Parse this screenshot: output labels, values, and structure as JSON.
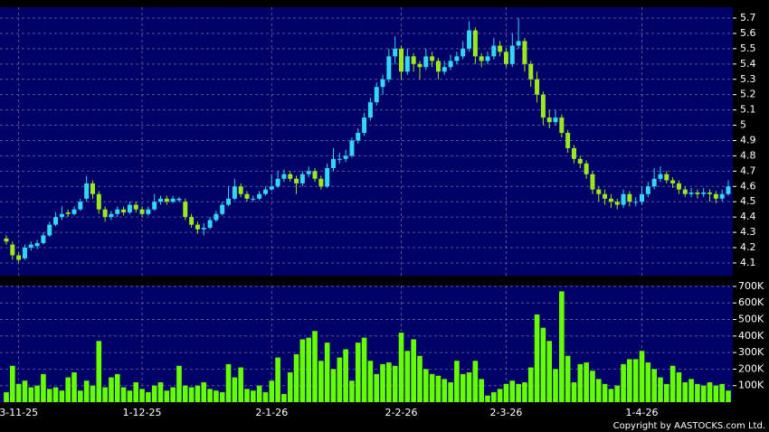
{
  "chart_data": {
    "type": "candlestick",
    "up_color": "#33d6f5",
    "down_color": "#9be81e",
    "volume_color": "#66ff00",
    "grid": true,
    "ylim": [
      4.017,
      5.771
    ],
    "yticks": [
      4.1,
      4.2,
      4.3,
      4.4,
      4.5,
      4.6,
      4.7,
      4.8,
      4.9,
      5,
      5.1,
      5.2,
      5.3,
      5.4,
      5.5,
      5.6,
      5.7
    ],
    "volume_ylim": [
      0,
      705000
    ],
    "volume_yticks": [
      {
        "value": 100000,
        "label": "100K"
      },
      {
        "value": 200000,
        "label": "200K"
      },
      {
        "value": 300000,
        "label": "300K"
      },
      {
        "value": 400000,
        "label": "400K"
      },
      {
        "value": 500000,
        "label": "500K"
      },
      {
        "value": 600000,
        "label": "600K"
      },
      {
        "value": 700000,
        "label": "700K"
      }
    ],
    "xlim": [
      0,
      117
    ],
    "xticks": [
      {
        "value": 2,
        "label": "3-11-25"
      },
      {
        "value": 22,
        "label": "1-12-25"
      },
      {
        "value": 43,
        "label": "2-1-26"
      },
      {
        "value": 64,
        "label": "2-2-26"
      },
      {
        "value": 81,
        "label": "2-3-26"
      },
      {
        "value": 103,
        "label": "1-4-26"
      }
    ],
    "candles": [
      [
        4.26,
        4.28,
        4.22,
        4.24
      ],
      [
        4.22,
        4.24,
        4.12,
        4.15
      ],
      [
        4.15,
        4.17,
        4.1,
        4.12
      ],
      [
        4.13,
        4.22,
        4.12,
        4.2
      ],
      [
        4.2,
        4.24,
        4.18,
        4.22
      ],
      [
        4.21,
        4.25,
        4.19,
        4.23
      ],
      [
        4.23,
        4.3,
        4.22,
        4.28
      ],
      [
        4.28,
        4.37,
        4.27,
        4.35
      ],
      [
        4.35,
        4.43,
        4.34,
        4.4
      ],
      [
        4.4,
        4.47,
        4.38,
        4.42
      ],
      [
        4.43,
        4.45,
        4.4,
        4.42
      ],
      [
        4.42,
        4.47,
        4.41,
        4.45
      ],
      [
        4.45,
        4.52,
        4.44,
        4.5
      ],
      [
        4.52,
        4.67,
        4.5,
        4.62
      ],
      [
        4.62,
        4.64,
        4.52,
        4.55
      ],
      [
        4.55,
        4.57,
        4.42,
        4.45
      ],
      [
        4.45,
        4.47,
        4.37,
        4.4
      ],
      [
        4.4,
        4.44,
        4.38,
        4.42
      ],
      [
        4.42,
        4.47,
        4.4,
        4.45
      ],
      [
        4.45,
        4.47,
        4.41,
        4.43
      ],
      [
        4.43,
        4.5,
        4.42,
        4.48
      ],
      [
        4.48,
        4.5,
        4.43,
        4.45
      ],
      [
        4.45,
        4.47,
        4.4,
        4.42
      ],
      [
        4.42,
        4.47,
        4.41,
        4.45
      ],
      [
        4.45,
        4.55,
        4.44,
        4.5
      ],
      [
        4.5,
        4.54,
        4.48,
        4.52
      ],
      [
        4.52,
        4.54,
        4.48,
        4.5
      ],
      [
        4.5,
        4.54,
        4.49,
        4.52
      ],
      [
        4.51,
        4.53,
        4.5,
        4.52
      ],
      [
        4.5,
        4.52,
        4.38,
        4.4
      ],
      [
        4.4,
        4.42,
        4.33,
        4.35
      ],
      [
        4.35,
        4.37,
        4.29,
        4.32
      ],
      [
        4.32,
        4.36,
        4.28,
        4.33
      ],
      [
        4.33,
        4.4,
        4.32,
        4.38
      ],
      [
        4.38,
        4.44,
        4.37,
        4.42
      ],
      [
        4.42,
        4.5,
        4.41,
        4.48
      ],
      [
        4.48,
        4.6,
        4.47,
        4.52
      ],
      [
        4.52,
        4.65,
        4.51,
        4.6
      ],
      [
        4.6,
        4.62,
        4.53,
        4.55
      ],
      [
        4.55,
        4.57,
        4.5,
        4.52
      ],
      [
        4.52,
        4.54,
        4.5,
        4.52
      ],
      [
        4.52,
        4.57,
        4.51,
        4.55
      ],
      [
        4.55,
        4.6,
        4.54,
        4.58
      ],
      [
        4.58,
        4.68,
        4.57,
        4.6
      ],
      [
        4.6,
        4.7,
        4.59,
        4.65
      ],
      [
        4.65,
        4.71,
        4.63,
        4.68
      ],
      [
        4.68,
        4.7,
        4.63,
        4.65
      ],
      [
        4.65,
        4.67,
        4.55,
        4.62
      ],
      [
        4.62,
        4.7,
        4.6,
        4.68
      ],
      [
        4.68,
        4.73,
        4.66,
        4.7
      ],
      [
        4.7,
        4.72,
        4.63,
        4.65
      ],
      [
        4.65,
        4.67,
        4.58,
        4.6
      ],
      [
        4.6,
        4.75,
        4.59,
        4.72
      ],
      [
        4.72,
        4.85,
        4.7,
        4.78
      ],
      [
        4.78,
        4.82,
        4.75,
        4.78
      ],
      [
        4.78,
        4.84,
        4.76,
        4.8
      ],
      [
        4.8,
        4.92,
        4.79,
        4.9
      ],
      [
        4.9,
        4.98,
        4.88,
        4.95
      ],
      [
        4.95,
        5.08,
        4.93,
        5.05
      ],
      [
        5.05,
        5.18,
        5.03,
        5.15
      ],
      [
        5.15,
        5.28,
        5.13,
        5.25
      ],
      [
        5.25,
        5.33,
        5.2,
        5.3
      ],
      [
        5.3,
        5.5,
        5.28,
        5.45
      ],
      [
        5.45,
        5.58,
        5.4,
        5.5
      ],
      [
        5.5,
        5.52,
        5.3,
        5.35
      ],
      [
        5.35,
        5.5,
        5.33,
        5.45
      ],
      [
        5.45,
        5.47,
        5.35,
        5.4
      ],
      [
        5.4,
        5.42,
        5.3,
        5.38
      ],
      [
        5.38,
        5.5,
        5.36,
        5.45
      ],
      [
        5.45,
        5.48,
        5.38,
        5.42
      ],
      [
        5.42,
        5.44,
        5.3,
        5.35
      ],
      [
        5.35,
        5.42,
        5.33,
        5.38
      ],
      [
        5.38,
        5.46,
        5.36,
        5.42
      ],
      [
        5.42,
        5.48,
        5.4,
        5.45
      ],
      [
        5.45,
        5.55,
        5.43,
        5.5
      ],
      [
        5.5,
        5.68,
        5.48,
        5.62
      ],
      [
        5.62,
        5.64,
        5.4,
        5.45
      ],
      [
        5.45,
        5.47,
        5.38,
        5.42
      ],
      [
        5.42,
        5.48,
        5.4,
        5.45
      ],
      [
        5.45,
        5.57,
        5.43,
        5.52
      ],
      [
        5.52,
        5.55,
        5.45,
        5.48
      ],
      [
        5.48,
        5.5,
        5.38,
        5.4
      ],
      [
        5.4,
        5.6,
        5.38,
        5.52
      ],
      [
        5.52,
        5.7,
        5.5,
        5.55
      ],
      [
        5.55,
        5.57,
        5.35,
        5.4
      ],
      [
        5.4,
        5.42,
        5.25,
        5.3
      ],
      [
        5.3,
        5.35,
        5.15,
        5.2
      ],
      [
        5.2,
        5.22,
        5.0,
        5.05
      ],
      [
        5.05,
        5.1,
        4.98,
        5.02
      ],
      [
        5.02,
        5.1,
        5.0,
        5.05
      ],
      [
        5.05,
        5.07,
        4.92,
        4.95
      ],
      [
        4.95,
        4.97,
        4.82,
        4.85
      ],
      [
        4.85,
        4.87,
        4.75,
        4.78
      ],
      [
        4.78,
        4.8,
        4.72,
        4.75
      ],
      [
        4.75,
        4.77,
        4.65,
        4.68
      ],
      [
        4.68,
        4.7,
        4.55,
        4.58
      ],
      [
        4.58,
        4.6,
        4.5,
        4.55
      ],
      [
        4.55,
        4.58,
        4.48,
        4.52
      ],
      [
        4.52,
        4.55,
        4.46,
        4.5
      ],
      [
        4.5,
        4.52,
        4.45,
        4.48
      ],
      [
        4.48,
        4.58,
        4.46,
        4.55
      ],
      [
        4.55,
        4.57,
        4.47,
        4.5
      ],
      [
        4.5,
        4.53,
        4.47,
        4.5
      ],
      [
        4.5,
        4.6,
        4.48,
        4.55
      ],
      [
        4.55,
        4.63,
        4.53,
        4.6
      ],
      [
        4.6,
        4.72,
        4.58,
        4.65
      ],
      [
        4.65,
        4.73,
        4.63,
        4.68
      ],
      [
        4.68,
        4.7,
        4.62,
        4.64
      ],
      [
        4.64,
        4.66,
        4.59,
        4.62
      ],
      [
        4.62,
        4.64,
        4.55,
        4.58
      ],
      [
        4.58,
        4.6,
        4.53,
        4.55
      ],
      [
        4.55,
        4.59,
        4.53,
        4.56
      ],
      [
        4.56,
        4.58,
        4.52,
        4.55
      ],
      [
        4.55,
        4.59,
        4.53,
        4.56
      ],
      [
        4.56,
        4.58,
        4.5,
        4.55
      ],
      [
        4.55,
        4.57,
        4.49,
        4.52
      ],
      [
        4.52,
        4.58,
        4.5,
        4.55
      ],
      [
        4.55,
        4.64,
        4.54,
        4.6
      ]
    ],
    "volumes": [
      60000,
      220000,
      110000,
      130000,
      90000,
      100000,
      170000,
      80000,
      90000,
      70000,
      150000,
      180000,
      70000,
      130000,
      100000,
      370000,
      90000,
      150000,
      170000,
      90000,
      70000,
      120000,
      80000,
      60000,
      100000,
      120000,
      70000,
      90000,
      220000,
      100000,
      90000,
      100000,
      120000,
      80000,
      70000,
      60000,
      230000,
      150000,
      210000,
      80000,
      70000,
      100000,
      60000,
      130000,
      270000,
      50000,
      180000,
      290000,
      380000,
      390000,
      430000,
      250000,
      360000,
      200000,
      270000,
      320000,
      130000,
      360000,
      390000,
      250000,
      170000,
      230000,
      240000,
      220000,
      420000,
      310000,
      380000,
      280000,
      200000,
      170000,
      160000,
      140000,
      120000,
      250000,
      170000,
      180000,
      250000,
      140000,
      40000,
      60000,
      80000,
      110000,
      130000,
      110000,
      120000,
      210000,
      530000,
      450000,
      370000,
      200000,
      670000,
      280000,
      120000,
      230000,
      240000,
      190000,
      140000,
      110000,
      80000,
      100000,
      230000,
      260000,
      260000,
      310000,
      240000,
      200000,
      150000,
      110000,
      220000,
      180000,
      120000,
      140000,
      110000,
      100000,
      120000,
      100000,
      110000,
      70000
    ],
    "copyright": "Copyright by AASTOCKS.com Ltd."
  }
}
